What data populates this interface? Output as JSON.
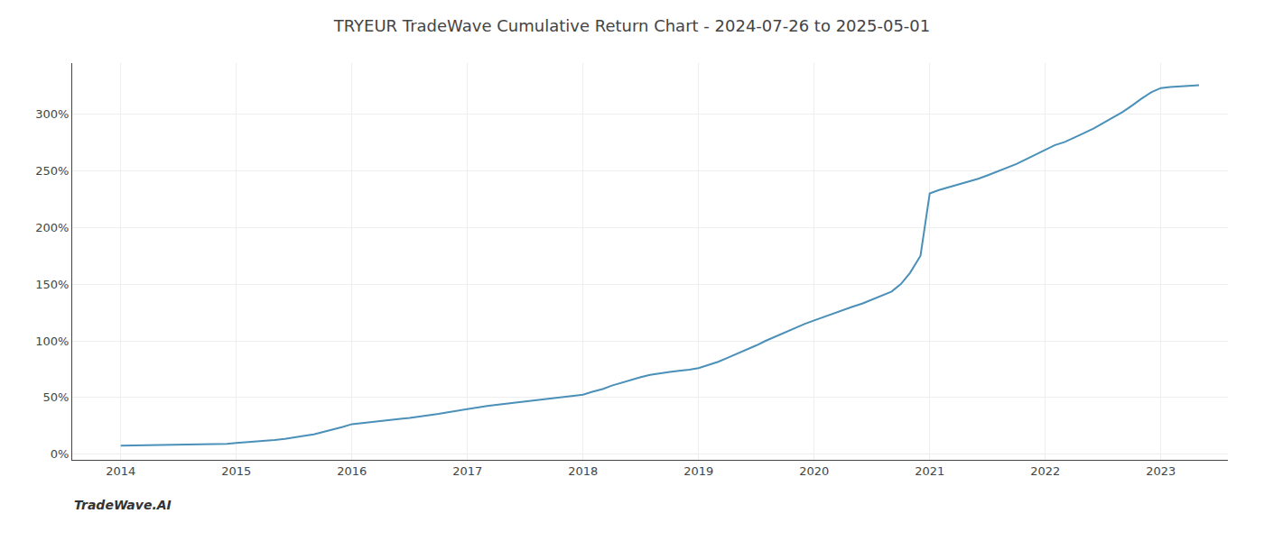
{
  "chart_data": {
    "type": "line",
    "title": "TRYEUR TradeWave Cumulative Return Chart - 2024-07-26 to 2025-05-01",
    "annotations": [
      "TradeWave.AI"
    ],
    "color": "#4a90b8",
    "grid": true,
    "x": [
      2014.0,
      2014.08,
      2014.17,
      2014.25,
      2014.33,
      2014.42,
      2014.5,
      2014.58,
      2014.67,
      2014.75,
      2014.83,
      2014.92,
      2015.0,
      2015.08,
      2015.17,
      2015.25,
      2015.33,
      2015.42,
      2015.5,
      2015.58,
      2015.67,
      2015.75,
      2015.83,
      2015.92,
      2016.0,
      2016.08,
      2016.17,
      2016.25,
      2016.33,
      2016.42,
      2016.5,
      2016.58,
      2016.67,
      2016.75,
      2016.83,
      2016.92,
      2017.0,
      2017.08,
      2017.17,
      2017.25,
      2017.33,
      2017.42,
      2017.5,
      2017.58,
      2017.67,
      2017.75,
      2017.83,
      2017.92,
      2018.0,
      2018.08,
      2018.17,
      2018.25,
      2018.33,
      2018.42,
      2018.5,
      2018.58,
      2018.67,
      2018.75,
      2018.83,
      2018.92,
      2019.0,
      2019.08,
      2019.17,
      2019.25,
      2019.33,
      2019.42,
      2019.5,
      2019.58,
      2019.67,
      2019.75,
      2019.83,
      2019.92,
      2020.0,
      2020.08,
      2020.17,
      2020.25,
      2020.33,
      2020.42,
      2020.5,
      2020.58,
      2020.67,
      2020.75,
      2020.83,
      2020.92,
      2021.0,
      2021.08,
      2021.17,
      2021.25,
      2021.33,
      2021.42,
      2021.5,
      2021.58,
      2021.67,
      2021.75,
      2021.83,
      2021.92,
      2022.0,
      2022.08,
      2022.17,
      2022.25,
      2022.33,
      2022.42,
      2022.5,
      2022.58,
      2022.67,
      2022.75,
      2022.83,
      2022.92,
      2023.0,
      2023.08,
      2023.17,
      2023.25,
      2023.33
    ],
    "values": [
      7.5,
      7.6,
      7.7,
      7.8,
      7.9,
      8.0,
      8.1,
      8.2,
      8.3,
      8.5,
      8.8,
      9.2,
      10.0,
      10.5,
      11.0,
      11.8,
      12.5,
      13.5,
      14.5,
      16.0,
      17.5,
      19.5,
      21.5,
      24.0,
      26.5,
      27.5,
      28.5,
      29.5,
      30.5,
      31.2,
      32.0,
      33.0,
      34.0,
      35.5,
      37.0,
      38.5,
      40.0,
      41.5,
      42.5,
      43.5,
      44.5,
      45.5,
      46.5,
      47.5,
      48.5,
      49.5,
      50.5,
      51.5,
      52.5,
      55.0,
      57.5,
      60.5,
      63.0,
      65.5,
      68.0,
      70.0,
      71.5,
      72.5,
      73.5,
      74.5,
      76.0,
      78.5,
      81.5,
      85.0,
      88.5,
      92.0,
      96.0,
      100.0,
      104.0,
      108.0,
      111.5,
      115.0,
      118.0,
      121.0,
      124.0,
      127.0,
      130.0,
      133.0,
      136.5,
      140.0,
      143.5,
      150.0,
      160.0,
      175.0,
      230.0,
      233.0,
      235.5,
      238.0,
      240.5,
      243.0,
      246.0,
      249.0,
      252.5,
      256.0,
      260.0,
      264.5,
      269.0,
      272.5,
      275.5,
      279.0,
      283.0,
      287.5,
      292.0,
      297.0,
      302.0,
      307.5,
      313.5,
      319.5,
      323.0,
      324.0,
      324.5,
      325.0,
      325.5
    ],
    "xlim": [
      2013.58,
      2023.58
    ],
    "xticks": [
      2014,
      2015,
      2016,
      2017,
      2018,
      2019,
      2020,
      2021,
      2022,
      2023
    ],
    "ylim": [
      -5,
      345
    ],
    "yticks": [
      {
        "value": 0,
        "label": "0%"
      },
      {
        "value": 50,
        "label": "50%"
      },
      {
        "value": 100,
        "label": "100%"
      },
      {
        "value": 150,
        "label": "150%"
      },
      {
        "value": 200,
        "label": "200%"
      },
      {
        "value": 250,
        "label": "250%"
      },
      {
        "value": 300,
        "label": "300%"
      }
    ]
  }
}
